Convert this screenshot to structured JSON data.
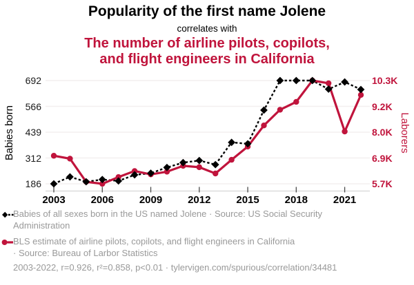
{
  "header": {
    "title": "Popularity of the first name Jolene",
    "subtitle": "correlates with",
    "red_heading": "The number of airline pilots, copilots,\nand flight engineers in California"
  },
  "colors": {
    "accent_red": "#c0143c",
    "text_gray": "#999999",
    "series_black": "#000000",
    "gridline": "#f3efef"
  },
  "chart_data": {
    "type": "line",
    "title": "Popularity of the first name Jolene vs. airline pilots, copilots, and flight engineers in California",
    "x": [
      2003,
      2004,
      2005,
      2006,
      2007,
      2008,
      2009,
      2010,
      2011,
      2012,
      2013,
      2014,
      2015,
      2016,
      2017,
      2018,
      2019,
      2020,
      2021,
      2022
    ],
    "x_ticks": [
      2003,
      2006,
      2009,
      2012,
      2015,
      2018,
      2021
    ],
    "left_axis": {
      "label": "Babies born",
      "ticks": [
        186,
        312,
        439,
        566,
        692
      ],
      "range": [
        186,
        692
      ]
    },
    "right_axis": {
      "label": "Laborers",
      "ticks": [
        "5.7K",
        "6.9K",
        "8.0K",
        "9.2K",
        "10.3K"
      ],
      "tick_values": [
        5700,
        6850,
        8000,
        9150,
        10300
      ],
      "range": [
        5700,
        10300
      ]
    },
    "grid": true,
    "legend_position": "bottom",
    "series": [
      {
        "name": "Babies of all sexes born in the US named Jolene",
        "axis": "left",
        "color": "#000000",
        "style": "dashed",
        "marker": "diamond",
        "values": [
          186,
          220,
          196,
          207,
          200,
          230,
          238,
          266,
          290,
          300,
          280,
          389,
          382,
          547,
          692,
          692,
          692,
          650,
          685,
          648
        ]
      },
      {
        "name": "BLS estimate of airline pilots, copilots, and flight engineers in California",
        "axis": "right",
        "color": "#c0143c",
        "style": "solid",
        "marker": "circle",
        "values": [
          6950,
          6820,
          5790,
          5700,
          6000,
          6270,
          6120,
          6240,
          6500,
          6440,
          6160,
          6770,
          7360,
          8300,
          9000,
          9350,
          10300,
          10180,
          8030,
          9660
        ]
      }
    ]
  },
  "legend": {
    "items": [
      {
        "text": "Babies of all sexes born in the US named Jolene · Source: US Social Security\nAdministration"
      },
      {
        "text": "BLS estimate of airline pilots, copilots, and flight engineers in California\n· Source: Bureau of Larbor Statistics"
      }
    ]
  },
  "footer": {
    "text": "2003-2022, r=0.926, r²=0.858, p<0.01 · tylervigen.com/spurious/correlation/34481"
  }
}
